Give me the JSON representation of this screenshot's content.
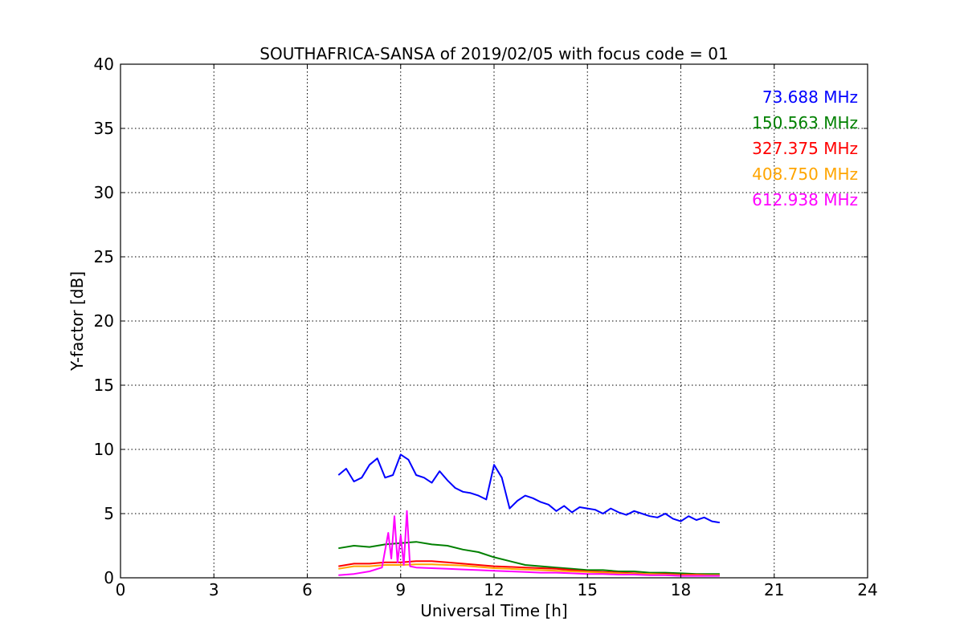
{
  "chart_data": {
    "type": "line",
    "title": "SOUTHAFRICA-SANSA of 2019/02/05 with focus code = 01",
    "xlabel": "Universal Time [h]",
    "ylabel": "Y-factor [dB]",
    "xlim": [
      0,
      24
    ],
    "ylim": [
      0,
      40
    ],
    "x_ticks": [
      0,
      3,
      6,
      9,
      12,
      15,
      18,
      21,
      24
    ],
    "x_tick_labels": [
      "0",
      "3",
      "6",
      "9",
      "12",
      "15",
      "18",
      "21",
      "24"
    ],
    "y_ticks": [
      0,
      5,
      10,
      15,
      20,
      25,
      30,
      35,
      40
    ],
    "y_tick_labels": [
      "0",
      "5",
      "10",
      "15",
      "20",
      "25",
      "30",
      "35",
      "40"
    ],
    "grid": true,
    "legend_position": "top-right",
    "series": [
      {
        "name": "73.688 MHz",
        "color": "#0000ff",
        "x": [
          7.0,
          7.25,
          7.5,
          7.75,
          8.0,
          8.25,
          8.5,
          8.75,
          9.0,
          9.25,
          9.5,
          9.75,
          10.0,
          10.25,
          10.5,
          10.75,
          11.0,
          11.25,
          11.5,
          11.75,
          12.0,
          12.25,
          12.5,
          12.75,
          13.0,
          13.25,
          13.5,
          13.75,
          14.0,
          14.25,
          14.5,
          14.75,
          15.0,
          15.25,
          15.5,
          15.75,
          16.0,
          16.25,
          16.5,
          16.75,
          17.0,
          17.25,
          17.5,
          17.75,
          18.0,
          18.25,
          18.5,
          18.75,
          19.0,
          19.25
        ],
        "y": [
          8.0,
          8.5,
          7.5,
          7.8,
          8.8,
          9.3,
          7.8,
          8.0,
          9.6,
          9.2,
          8.0,
          7.8,
          7.4,
          8.3,
          7.6,
          7.0,
          6.7,
          6.6,
          6.4,
          6.1,
          8.8,
          7.8,
          5.4,
          6.0,
          6.4,
          6.2,
          5.9,
          5.7,
          5.2,
          5.6,
          5.1,
          5.5,
          5.4,
          5.3,
          5.0,
          5.4,
          5.1,
          4.9,
          5.2,
          5.0,
          4.8,
          4.7,
          5.0,
          4.6,
          4.4,
          4.8,
          4.5,
          4.7,
          4.4,
          4.3
        ]
      },
      {
        "name": "150.563 MHz",
        "color": "#008000",
        "x": [
          7.0,
          7.5,
          8.0,
          8.5,
          9.0,
          9.5,
          10.0,
          10.5,
          11.0,
          11.5,
          12.0,
          12.5,
          13.0,
          13.5,
          14.0,
          14.5,
          15.0,
          15.5,
          16.0,
          16.5,
          17.0,
          17.5,
          18.0,
          18.5,
          19.0,
          19.25
        ],
        "y": [
          2.3,
          2.5,
          2.4,
          2.6,
          2.7,
          2.8,
          2.6,
          2.5,
          2.2,
          2.0,
          1.6,
          1.3,
          1.0,
          0.9,
          0.8,
          0.7,
          0.6,
          0.6,
          0.5,
          0.5,
          0.4,
          0.4,
          0.35,
          0.3,
          0.3,
          0.3
        ]
      },
      {
        "name": "327.375 MHz",
        "color": "#ff0000",
        "x": [
          7.0,
          7.5,
          8.0,
          8.5,
          9.0,
          9.5,
          10.0,
          10.5,
          11.0,
          11.5,
          12.0,
          12.5,
          13.0,
          13.5,
          14.0,
          14.5,
          15.0,
          15.5,
          16.0,
          16.5,
          17.0,
          17.5,
          18.0,
          18.5,
          19.0,
          19.25
        ],
        "y": [
          0.9,
          1.1,
          1.1,
          1.2,
          1.2,
          1.3,
          1.3,
          1.2,
          1.1,
          1.0,
          0.9,
          0.85,
          0.8,
          0.75,
          0.7,
          0.6,
          0.5,
          0.45,
          0.4,
          0.35,
          0.3,
          0.3,
          0.25,
          0.25,
          0.2,
          0.2
        ]
      },
      {
        "name": "408.750 MHz",
        "color": "#ffa500",
        "x": [
          7.0,
          7.5,
          8.0,
          8.5,
          9.0,
          9.5,
          10.0,
          10.5,
          11.0,
          11.5,
          12.0,
          12.5,
          13.0,
          13.5,
          14.0,
          14.5,
          15.0,
          15.5,
          16.0,
          16.5,
          17.0,
          17.5,
          18.0,
          18.5,
          19.0,
          19.25
        ],
        "y": [
          0.7,
          0.9,
          0.9,
          1.0,
          1.0,
          1.05,
          1.05,
          1.0,
          0.95,
          0.85,
          0.75,
          0.7,
          0.65,
          0.6,
          0.55,
          0.5,
          0.45,
          0.4,
          0.35,
          0.3,
          0.3,
          0.25,
          0.2,
          0.2,
          0.2,
          0.2
        ]
      },
      {
        "name": "612.938 MHz",
        "color": "#ff00ff",
        "x": [
          7.0,
          7.5,
          8.0,
          8.4,
          8.6,
          8.7,
          8.8,
          8.9,
          9.0,
          9.1,
          9.2,
          9.3,
          9.5,
          10.0,
          10.5,
          11.0,
          11.5,
          12.0,
          12.5,
          13.0,
          13.5,
          14.0,
          14.5,
          15.0,
          15.5,
          16.0,
          16.5,
          17.0,
          17.5,
          18.0,
          18.5,
          19.0,
          19.25
        ],
        "y": [
          0.2,
          0.3,
          0.5,
          0.8,
          3.5,
          1.5,
          4.8,
          1.2,
          3.3,
          1.0,
          5.2,
          0.9,
          0.8,
          0.75,
          0.7,
          0.65,
          0.6,
          0.55,
          0.5,
          0.45,
          0.4,
          0.4,
          0.35,
          0.3,
          0.3,
          0.25,
          0.25,
          0.2,
          0.2,
          0.15,
          0.15,
          0.15,
          0.15
        ]
      }
    ]
  }
}
